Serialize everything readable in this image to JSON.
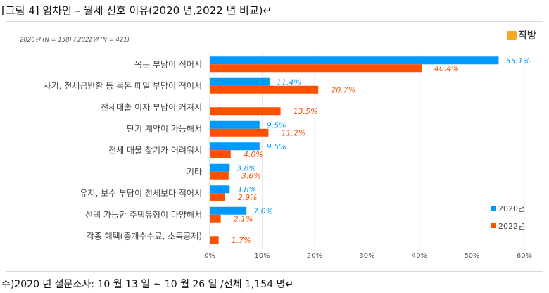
{
  "title": "[그림 4] 임차인 – 월세 선호 이유(2020 년,2022 년 비교)↵",
  "footer": "주)2020 년 설문조사: 10 월 13 일 ~ 10 월 26 일 /전체 1,154 명↵",
  "logo": "직방",
  "colors": {
    "2020": "#0099ff",
    "2022": "#ff5000"
  },
  "chart_data": {
    "type": "bar",
    "orientation": "horizontal",
    "subtitle": "2020년 (N = 158) / 2022년 (N = 421)",
    "categories": [
      "목돈 부담이 적어서",
      "사기, 전세금반환 등 목돈 떼일 부담이 적어서",
      "전세대출 이자 부담이 커져서",
      "단기 계약이 가능해서",
      "전세 매물 찾기가 어려워서",
      "기타",
      "유지, 보수 부담이 전세보다 적어서",
      "선택 가능한 주택유형이 다양해서",
      "각종 혜택(중개수수료, 소득공제)"
    ],
    "series": [
      {
        "name": "2020년",
        "values": [
          55.1,
          11.4,
          null,
          9.5,
          9.5,
          3.8,
          3.8,
          7.0,
          null
        ],
        "labels": [
          "55.1%",
          "11.4%",
          "",
          "9.5%",
          "9.5%",
          "3.8%",
          "3.8%",
          "7.0%",
          ""
        ]
      },
      {
        "name": "2022년",
        "values": [
          40.4,
          20.7,
          13.5,
          11.2,
          4.0,
          3.6,
          2.9,
          2.1,
          1.7
        ],
        "labels": [
          "40.4%",
          "20.7%",
          "13.5%",
          "11.2%",
          "4.0%",
          "3.6%",
          "2.9%",
          "2.1%",
          "1.7%"
        ]
      }
    ],
    "xlim": [
      0,
      60
    ],
    "xticks": [
      "0%",
      "10%",
      "20%",
      "30%",
      "40%",
      "50%",
      "60%"
    ],
    "legend": "right"
  }
}
